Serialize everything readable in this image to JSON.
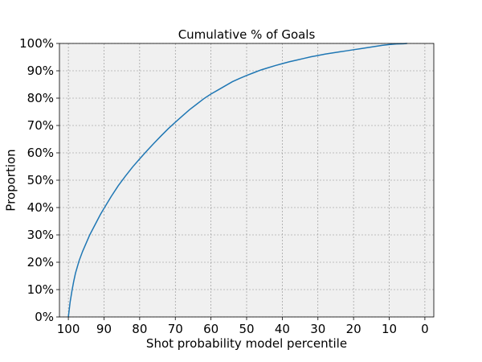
{
  "chart_data": {
    "type": "line",
    "title": "Cumulative % of Goals",
    "xlabel": "Shot probability model percentile",
    "ylabel": "Proportion",
    "xlim": [
      102.5,
      -2.5
    ],
    "ylim": [
      0,
      1
    ],
    "x_inverted": true,
    "grid": true,
    "background_color": "#f0f0f0",
    "line_color": "#1f77b4",
    "x_ticks": [
      100,
      90,
      80,
      70,
      60,
      50,
      40,
      30,
      20,
      10,
      0
    ],
    "x_tick_labels": [
      "100",
      "90",
      "80",
      "70",
      "60",
      "50",
      "40",
      "30",
      "20",
      "10",
      "0"
    ],
    "y_ticks": [
      0,
      0.1,
      0.2,
      0.3,
      0.4,
      0.5,
      0.6,
      0.7,
      0.8,
      0.9,
      1.0
    ],
    "y_tick_labels": [
      "0%",
      "10%",
      "20%",
      "30%",
      "40%",
      "50%",
      "60%",
      "70%",
      "80%",
      "90%",
      "100%"
    ],
    "series": [
      {
        "x": [
          100,
          99.5,
          99,
          98.5,
          98,
          97,
          96,
          95,
          94,
          93,
          92,
          91,
          90,
          88,
          86,
          84,
          82,
          80,
          78,
          76,
          74,
          72,
          70,
          68,
          66,
          64,
          62,
          60,
          58,
          56,
          54,
          52,
          50,
          48,
          46,
          44,
          42,
          40,
          38,
          36,
          34,
          32,
          30,
          28,
          26,
          24,
          22,
          20,
          18,
          16,
          14,
          12,
          10,
          8,
          6,
          5
        ],
        "y": [
          0,
          0.055,
          0.095,
          0.13,
          0.16,
          0.205,
          0.24,
          0.27,
          0.3,
          0.325,
          0.35,
          0.375,
          0.397,
          0.44,
          0.48,
          0.515,
          0.548,
          0.578,
          0.607,
          0.635,
          0.662,
          0.688,
          0.712,
          0.735,
          0.758,
          0.778,
          0.798,
          0.815,
          0.83,
          0.845,
          0.86,
          0.872,
          0.883,
          0.893,
          0.903,
          0.911,
          0.919,
          0.926,
          0.933,
          0.939,
          0.945,
          0.951,
          0.956,
          0.961,
          0.965,
          0.969,
          0.973,
          0.977,
          0.981,
          0.985,
          0.989,
          0.993,
          0.996,
          0.998,
          0.999,
          1.0
        ]
      }
    ]
  }
}
